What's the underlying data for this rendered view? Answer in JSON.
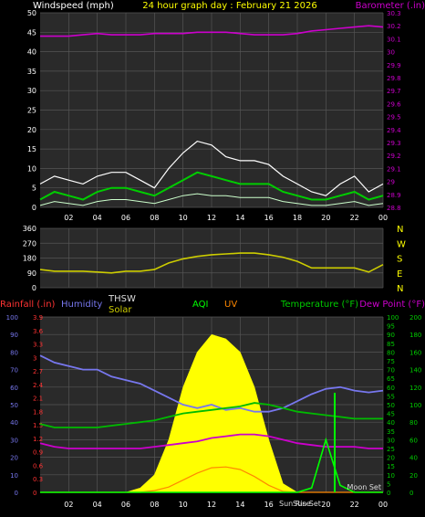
{
  "header": {
    "left_label": "Windspeed (mph)",
    "center_title": "24 hour graph day : February 21 2026",
    "right_label": "Barometer (.in)"
  },
  "bottom_labels": {
    "rainfall": "Rainfall (.in)",
    "humidity": "Humidity",
    "thsw": "THSW",
    "solar": "Solar",
    "aqi": "AQI",
    "uv": "UV",
    "temperature": "Temperature (°F)",
    "dewpoint": "Dew Point (°F)",
    "sunrise": "Sun Rise",
    "sunset": "Sun Set",
    "moonset": "Moon Set"
  },
  "colors": {
    "background": "#000000",
    "plot_bg": "#2a2a2a",
    "grid": "#555555",
    "wind_gust": "#ffffff",
    "wind_avg": "#00cc00",
    "wind_low": "#ccffcc",
    "barometer": "#cc00cc",
    "direction": "#cccc00",
    "humidity": "#7777ee",
    "temperature": "#00bb00",
    "dewpoint": "#cc00cc",
    "solar": "#ffff00",
    "uv": "#ff8800",
    "aqi": "#00ff00",
    "rain_axis": "#ff3333",
    "thsw": "#dddddd"
  },
  "chart_data": [
    {
      "type": "line",
      "name": "wind_barometer",
      "x_ticks": [
        "02",
        "04",
        "06",
        "08",
        "10",
        "12",
        "14",
        "16",
        "18",
        "20",
        "22",
        "00"
      ],
      "ylim": [
        0,
        50
      ],
      "y_ticks": [
        0,
        5,
        10,
        15,
        20,
        25,
        30,
        35,
        40,
        45,
        50
      ],
      "y2lim": [
        28.8,
        30.3
      ],
      "y2_ticks": [
        "28.8",
        "28.9",
        "29",
        "29.1",
        "29.2",
        "29.3",
        "29.4",
        "29.5",
        "29.6",
        "29.7",
        "29.8",
        "29.9",
        "30",
        "30.1",
        "30.2",
        "30.3"
      ],
      "x": [
        0,
        1,
        2,
        3,
        4,
        5,
        6,
        7,
        8,
        9,
        10,
        11,
        12,
        13,
        14,
        15,
        16,
        17,
        18,
        19,
        20,
        21,
        22,
        23,
        24
      ],
      "gust": [
        6,
        8,
        7,
        6,
        8,
        9,
        9,
        7,
        5,
        10,
        14,
        17,
        16,
        13,
        12,
        12,
        11,
        8,
        6,
        4,
        3,
        6,
        8,
        4,
        6
      ],
      "avg": [
        2,
        4,
        3,
        2,
        4,
        5,
        5,
        4,
        3,
        5,
        7,
        9,
        8,
        7,
        6,
        6,
        6,
        4,
        3,
        2,
        2,
        3,
        4,
        2,
        3
      ],
      "low": [
        0.5,
        1.5,
        1,
        0.5,
        1.5,
        2,
        2,
        1.5,
        1,
        2,
        3,
        3.5,
        3,
        3,
        2.5,
        2.5,
        2.5,
        1.5,
        1,
        0.5,
        0.5,
        1,
        1.5,
        0.5,
        1
      ],
      "barometer": [
        30.12,
        30.12,
        30.12,
        30.13,
        30.14,
        30.13,
        30.13,
        30.13,
        30.14,
        30.14,
        30.14,
        30.15,
        30.15,
        30.15,
        30.14,
        30.13,
        30.13,
        30.13,
        30.14,
        30.16,
        30.17,
        30.18,
        30.19,
        30.2,
        30.19
      ]
    },
    {
      "type": "line",
      "name": "wind_direction",
      "ylim": [
        0,
        360
      ],
      "y_ticks": [
        0,
        90,
        180,
        270,
        360
      ],
      "compass": [
        "N",
        "W",
        "S",
        "E",
        "N"
      ],
      "x": [
        0,
        1,
        2,
        3,
        4,
        5,
        6,
        7,
        8,
        9,
        10,
        11,
        12,
        13,
        14,
        15,
        16,
        17,
        18,
        19,
        20,
        21,
        22,
        23,
        24
      ],
      "direction": [
        110,
        100,
        100,
        100,
        95,
        90,
        100,
        100,
        110,
        150,
        175,
        190,
        200,
        205,
        210,
        210,
        200,
        185,
        160,
        120,
        120,
        120,
        120,
        95,
        140
      ]
    },
    {
      "type": "area",
      "name": "rain_humidity_temp",
      "rain_ylim": [
        0,
        3.9
      ],
      "rain_ticks": [
        "0",
        "0.3",
        "0.6",
        "0.9",
        "1.2",
        "1.5",
        "1.8",
        "2.1",
        "2.4",
        "2.7",
        "3",
        "3.3",
        "3.6",
        "3.9"
      ],
      "humidity_ylim": [
        0,
        100
      ],
      "humidity_ticks": [
        0,
        10,
        20,
        30,
        40,
        50,
        60,
        70,
        80,
        90,
        100
      ],
      "temp_ylim": [
        0,
        100
      ],
      "temp_ticks": [
        0,
        5,
        10,
        15,
        20,
        25,
        30,
        35,
        40,
        45,
        50,
        55,
        60,
        65,
        70,
        75,
        80,
        85,
        90,
        95,
        100
      ],
      "solar_ylim": [
        0,
        200
      ],
      "solar_ticks": [
        0,
        20,
        40,
        60,
        80,
        100,
        120,
        140,
        160,
        180,
        200
      ],
      "x": [
        0,
        1,
        2,
        3,
        4,
        5,
        6,
        7,
        8,
        9,
        10,
        11,
        12,
        13,
        14,
        15,
        16,
        17,
        18,
        19,
        20,
        21,
        22,
        23,
        24
      ],
      "humidity": [
        78,
        74,
        72,
        70,
        70,
        66,
        64,
        62,
        58,
        54,
        50,
        48,
        50,
        47,
        48,
        46,
        46,
        48,
        52,
        56,
        59,
        60,
        58,
        57,
        58
      ],
      "temperature": [
        39,
        37,
        37,
        37,
        37,
        38,
        39,
        40,
        41,
        43,
        45,
        46,
        47,
        48,
        49,
        51,
        50,
        48,
        46,
        45,
        44,
        43,
        42,
        42,
        42
      ],
      "dewpoint": [
        28,
        26,
        25,
        25,
        25,
        25,
        25,
        25,
        26,
        27,
        28,
        29,
        31,
        32,
        33,
        33,
        32,
        30,
        28,
        27,
        26,
        26,
        26,
        25,
        25
      ],
      "solar": [
        0,
        0,
        0,
        0,
        0,
        0,
        0,
        5,
        20,
        60,
        120,
        160,
        180,
        175,
        160,
        120,
        60,
        10,
        0,
        0,
        0,
        0,
        0,
        0,
        0
      ],
      "uv": [
        0,
        0,
        0,
        0,
        0,
        0,
        0,
        0,
        2,
        6,
        14,
        22,
        28,
        29,
        26,
        18,
        8,
        1,
        0,
        0,
        0,
        0,
        0,
        0,
        0
      ],
      "aqi": [
        0,
        0,
        0,
        0,
        0,
        0,
        0,
        0,
        0,
        0,
        0,
        0,
        0,
        0,
        0,
        0,
        0,
        0,
        0,
        5,
        60,
        8,
        0,
        0,
        0
      ]
    }
  ]
}
